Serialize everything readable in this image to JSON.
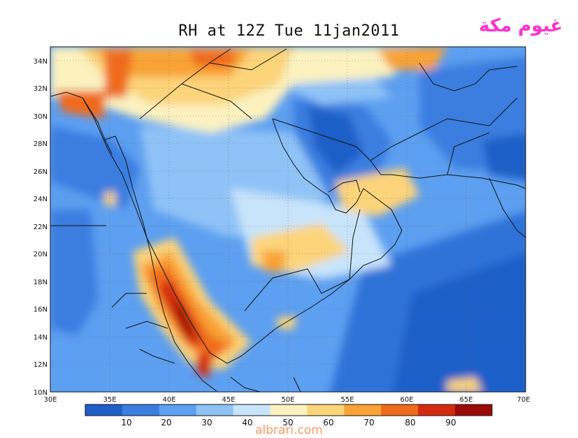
{
  "title": "RH at 12Z Tue 11jan2011",
  "watermark": "غيوم مكة",
  "footer": "albrari.com",
  "map": {
    "lat_range": [
      10,
      35
    ],
    "lon_range": [
      30,
      70
    ],
    "lat_ticks": [
      "34N",
      "32N",
      "30N",
      "28N",
      "26N",
      "24N",
      "22N",
      "20N",
      "18N",
      "16N",
      "14N",
      "12N",
      "10N"
    ],
    "lon_ticks": [
      "30E",
      "35E",
      "40E",
      "45E",
      "50E",
      "55E",
      "60E",
      "65E",
      "70E"
    ]
  },
  "colorbar": {
    "labels": [
      "10",
      "20",
      "30",
      "40",
      "50",
      "60",
      "70",
      "80",
      "90"
    ],
    "colors": [
      "#1f5fc8",
      "#3a7ee0",
      "#5d9ff0",
      "#8fc3f7",
      "#c8e4fb",
      "#fbf2c0",
      "#fcd47a",
      "#f9a236",
      "#f06a1c",
      "#d42a10",
      "#9a0a06"
    ]
  }
}
